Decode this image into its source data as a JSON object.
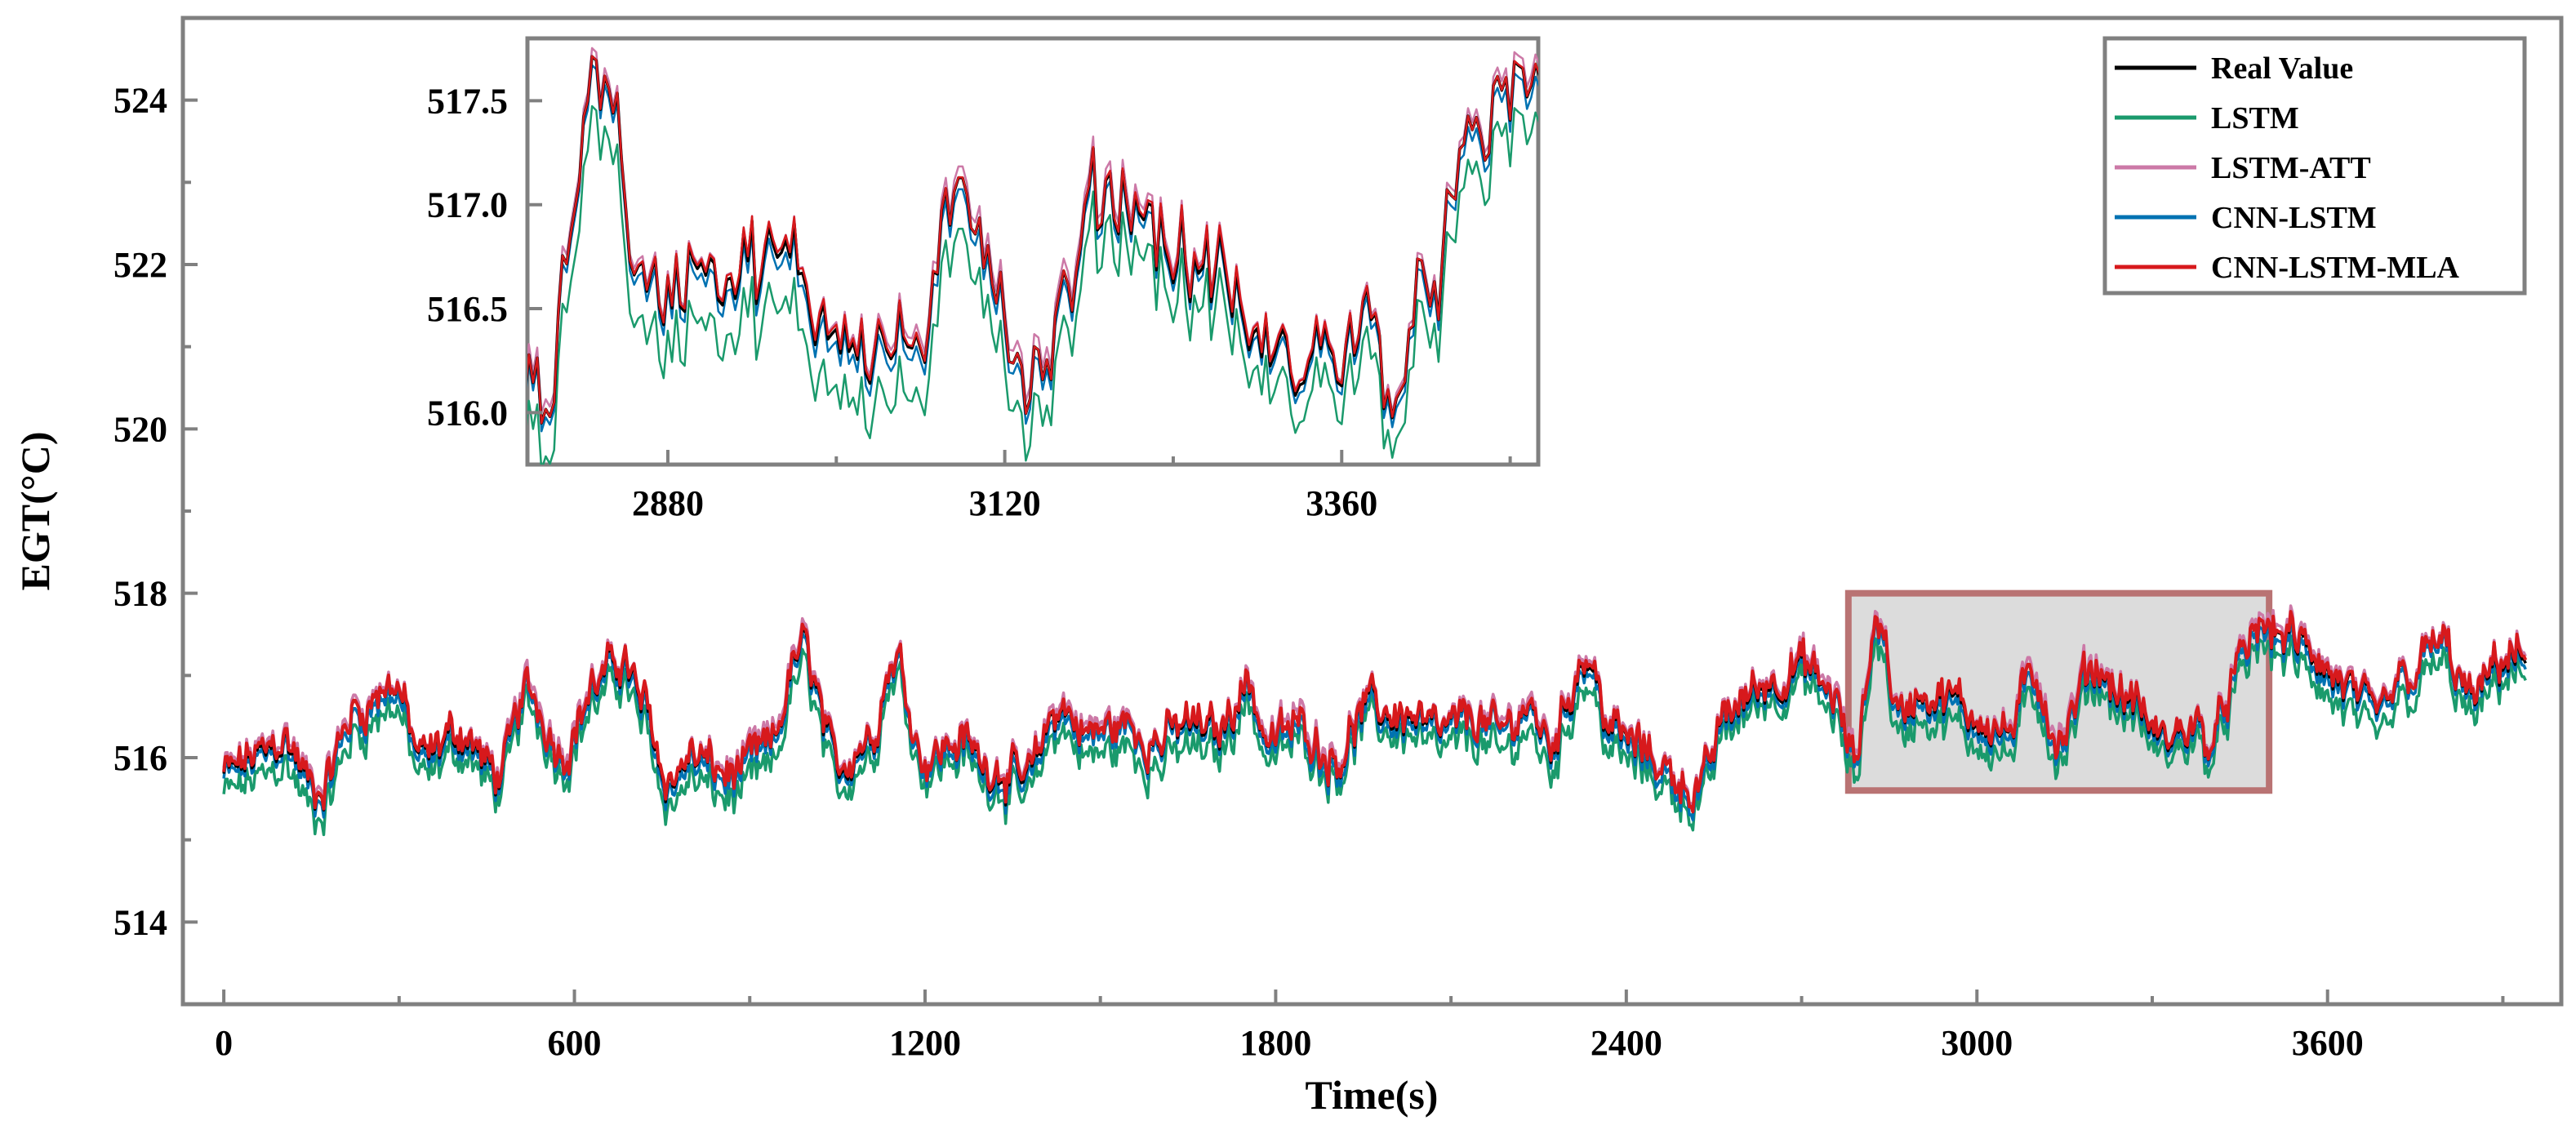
{
  "chart_data": {
    "type": "line",
    "xlabel": "Time(s)",
    "ylabel": "EGT(°C)",
    "xlim": [
      -70,
      4000
    ],
    "ylim": [
      513,
      525
    ],
    "xticks": [
      0,
      600,
      1200,
      1800,
      2400,
      3000,
      3600
    ],
    "yticks": [
      514,
      516,
      518,
      520,
      522,
      524
    ],
    "legend_position": "top-right",
    "series": [
      {
        "name": "Real Value",
        "color": "#000000"
      },
      {
        "name": "LSTM",
        "color": "#1a9a6c"
      },
      {
        "name": "LSTM-ATT",
        "color": "#cc79a7"
      },
      {
        "name": "CNN-LSTM",
        "color": "#0072b2"
      },
      {
        "name": "CNN-LSTM-MLA",
        "color": "#d7191c"
      }
    ],
    "real_value_anchor_points": {
      "x": [
        0,
        60,
        100,
        160,
        230,
        290,
        340,
        400,
        470,
        520,
        580,
        640,
        680,
        720,
        760,
        800,
        870,
        930,
        990,
        1050,
        1100,
        1150,
        1200,
        1260,
        1310,
        1370,
        1430,
        1480,
        1540,
        1600,
        1650,
        1700,
        1750,
        1790,
        1840,
        1900,
        1960,
        2020,
        2080,
        2140,
        2180,
        2230,
        2270,
        2330,
        2380,
        2430,
        2480,
        2520,
        2580,
        2640,
        2700,
        2750,
        2790,
        2830,
        2870,
        2900,
        2950,
        3000,
        3050,
        3100,
        3140,
        3200,
        3260,
        3320,
        3370,
        3400,
        3450,
        3480,
        3520,
        3570,
        3620,
        3680,
        3740,
        3790,
        3850,
        3900
      ],
      "y": [
        515.8,
        516.0,
        516.2,
        515.6,
        516.6,
        516.9,
        516.0,
        516.3,
        515.8,
        516.8,
        516.1,
        516.9,
        517.2,
        516.6,
        515.7,
        516.0,
        515.8,
        516.1,
        517.3,
        515.9,
        516.2,
        517.2,
        516.0,
        516.2,
        515.9,
        515.7,
        516.6,
        516.3,
        516.4,
        516.2,
        516.4,
        516.3,
        516.9,
        516.2,
        516.4,
        516.0,
        516.6,
        516.5,
        516.3,
        516.5,
        516.3,
        516.6,
        516.2,
        517.2,
        516.3,
        516.1,
        515.8,
        515.6,
        516.6,
        516.9,
        517.1,
        516.8,
        516.0,
        517.7,
        516.5,
        516.8,
        516.7,
        516.5,
        516.3,
        517.0,
        516.2,
        517.1,
        516.7,
        516.2,
        516.4,
        516.2,
        517.1,
        517.6,
        517.5,
        517.3,
        516.9,
        516.5,
        517.0,
        517.4,
        516.7,
        517.2
      ]
    },
    "inset": {
      "xlim": [
        2780,
        3500
      ],
      "ylim": [
        515.75,
        517.8
      ],
      "xticks": [
        2880,
        3120,
        3360
      ],
      "yticks": [
        516.0,
        516.5,
        517.0,
        517.5
      ],
      "zoom_box_x": [
        2780,
        3500
      ],
      "zoom_box_y": [
        515.6,
        518.0
      ]
    }
  }
}
